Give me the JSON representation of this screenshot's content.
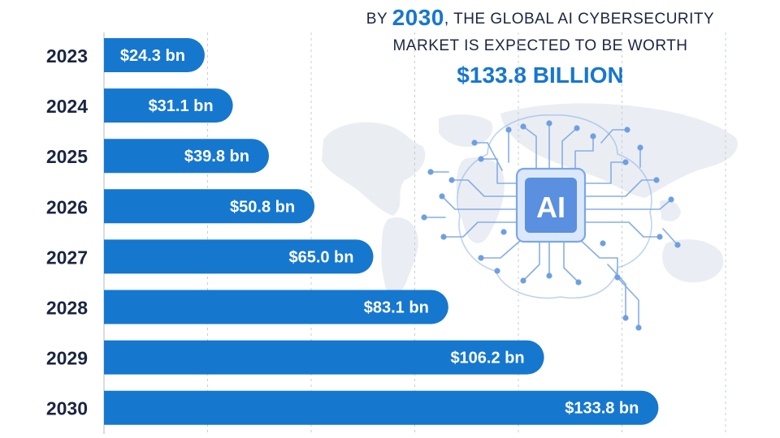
{
  "headline": {
    "prefix": "BY ",
    "year": "2030",
    "suffix": ", THE GLOBAL AI CYBERSECURITY",
    "line2": "MARKET IS EXPECTED TO BE WORTH",
    "amount": "$133.8 BILLION"
  },
  "illustration": {
    "chip_label": "AI",
    "icon": "ai-brain-circuit-icon"
  },
  "colors": {
    "bar": "#1677cf",
    "label": "#1a2540",
    "grid": "#c7cdd6",
    "headline_accent": "#1677cf"
  },
  "chart_data": {
    "type": "bar",
    "orientation": "horizontal",
    "categories": [
      "2023",
      "2024",
      "2025",
      "2026",
      "2027",
      "2028",
      "2029",
      "2030"
    ],
    "values": [
      24.3,
      31.1,
      39.8,
      50.8,
      65.0,
      83.1,
      106.2,
      133.8
    ],
    "value_labels": [
      "$24.3 bn",
      "$31.1 bn",
      "$39.8 bn",
      "$50.8 bn",
      "$65.0 bn",
      "$83.1 bn",
      "$106.2 bn",
      "$133.8 bn"
    ],
    "xlim": [
      0,
      150
    ],
    "grid": true,
    "title": "",
    "xlabel": "",
    "ylabel": ""
  }
}
